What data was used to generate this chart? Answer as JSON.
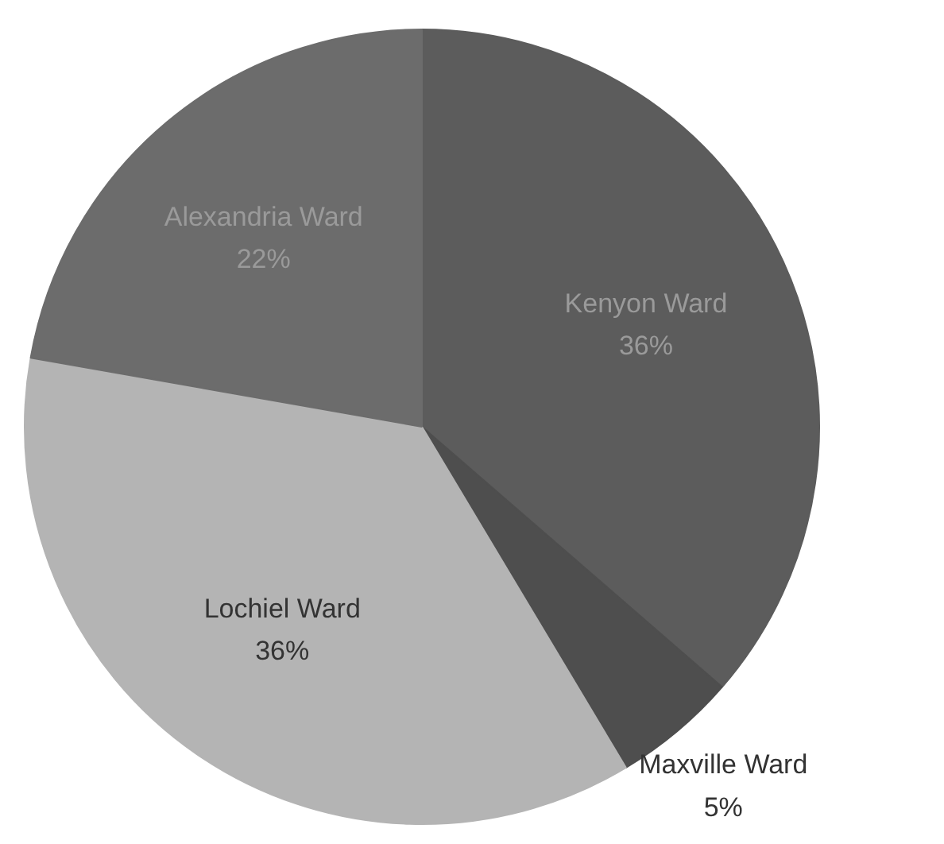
{
  "chart_data": {
    "type": "pie",
    "categories": [
      "Kenyon Ward",
      "Maxville Ward",
      "Lochiel Ward",
      "Alexandria Ward"
    ],
    "values": [
      36,
      5,
      36,
      22
    ],
    "colors": [
      "#5c5c5c",
      "#4e4e4e",
      "#b4b4b4",
      "#6c6c6c"
    ],
    "value_labels": [
      "36%",
      "5%",
      "36%",
      "22%"
    ]
  }
}
